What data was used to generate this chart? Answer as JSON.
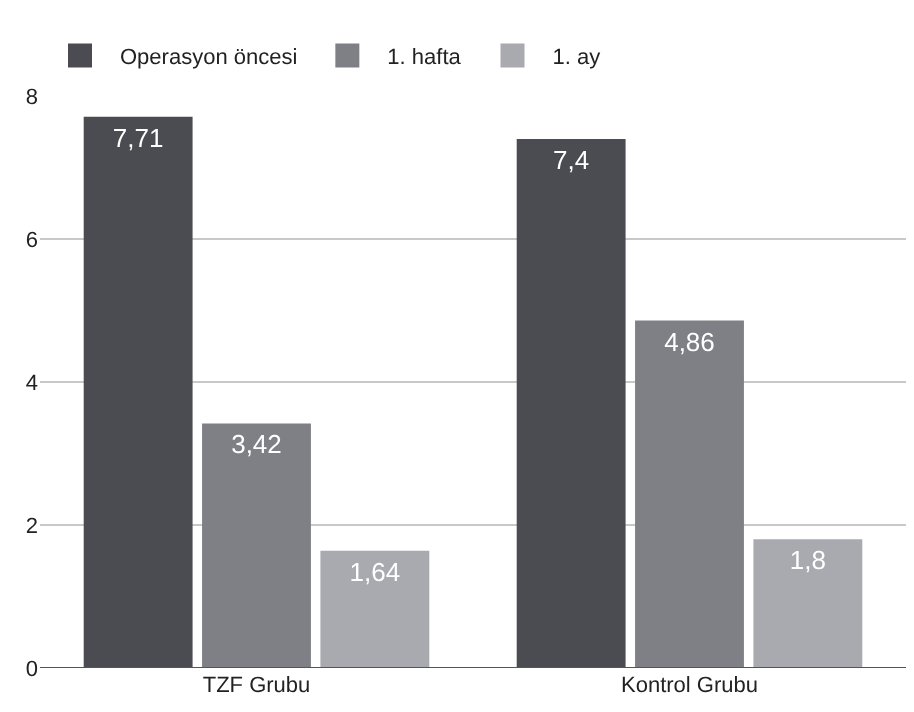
{
  "chart_data": {
    "type": "bar",
    "categories": [
      "TZF Grubu",
      "Kontrol Grubu"
    ],
    "series": [
      {
        "name": "Operasyon öncesi",
        "color": "#4b4c51",
        "values": [
          7.71,
          7.4
        ],
        "value_labels": [
          "7,71",
          "7,4"
        ]
      },
      {
        "name": "1. hafta",
        "color": "#7e8086",
        "values": [
          3.42,
          4.86
        ],
        "value_labels": [
          "3,42",
          "4,86"
        ]
      },
      {
        "name": "1. ay",
        "color": "#a8aab0",
        "values": [
          1.64,
          1.8
        ],
        "value_labels": [
          "1,64",
          "1,8"
        ]
      }
    ],
    "ylim": [
      0,
      8
    ],
    "yticks": [
      0,
      2,
      4,
      6,
      8
    ],
    "grid": "y",
    "legend": "top left"
  }
}
